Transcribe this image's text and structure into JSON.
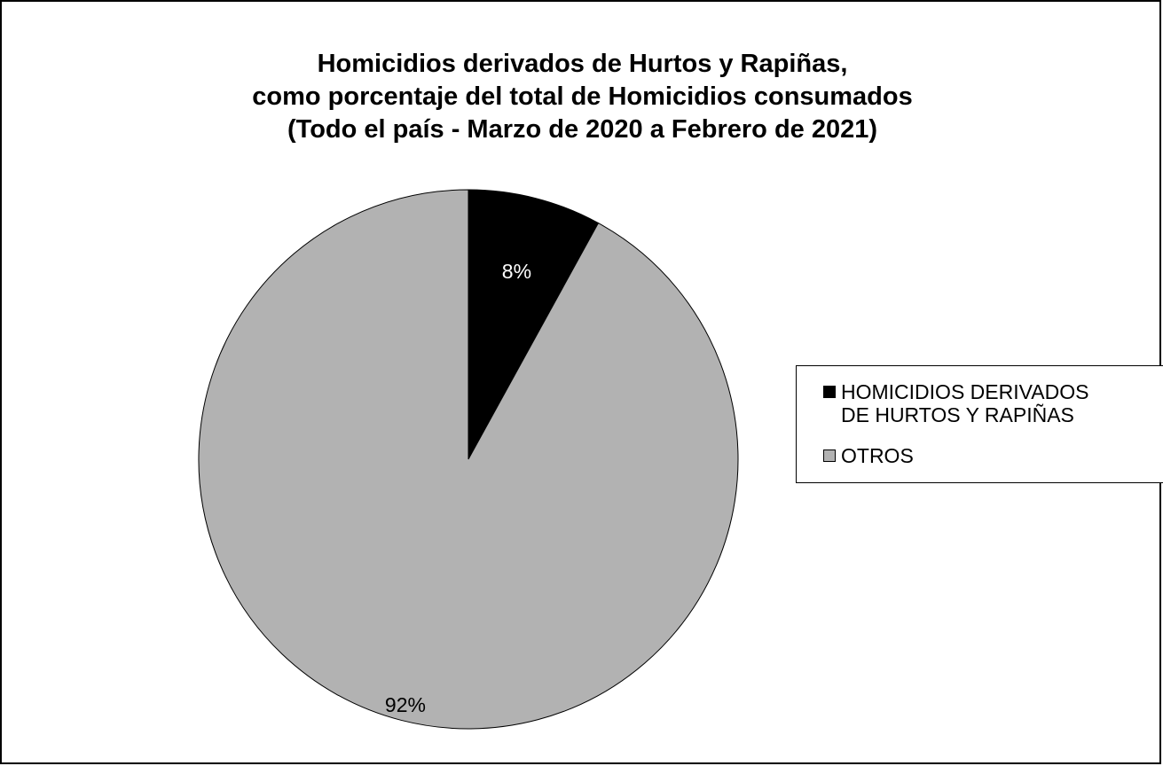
{
  "chart_data": {
    "type": "pie",
    "title": [
      "Homicidios derivados de Hurtos y Rapiñas,",
      "como porcentaje del total de Homicidios consumados",
      "(Todo el país - Marzo de 2020 a Febrero de 2021)"
    ],
    "slices": [
      {
        "label": "HOMICIDIOS DERIVADOS\nDE HURTOS Y RAPIÑAS",
        "value": 8,
        "display": "8%",
        "color": "#000000",
        "label_color": "#ffffff"
      },
      {
        "label": "OTROS",
        "value": 92,
        "display": "92%",
        "color": "#b2b2b2",
        "label_color": "#000000"
      }
    ],
    "start_angle": "12 o'clock",
    "direction": "clockwise",
    "legend_position": "right"
  }
}
